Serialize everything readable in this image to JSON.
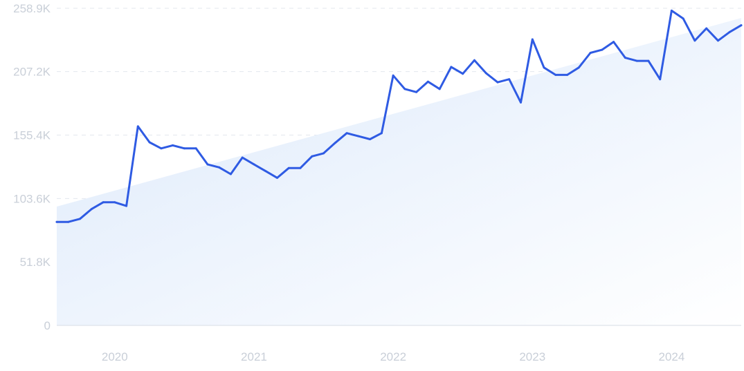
{
  "chart_data": {
    "type": "line",
    "title": "",
    "xlabel": "",
    "ylabel": "",
    "grid": true,
    "legend": "none",
    "ylim": [
      0,
      258900
    ],
    "xlim": [
      "2019-08",
      "2024-07"
    ],
    "y_ticks": [
      {
        "value": 0,
        "label": "0"
      },
      {
        "value": 51800,
        "label": "51.8K"
      },
      {
        "value": 103600,
        "label": "103.6K"
      },
      {
        "value": 155400,
        "label": "155.4K"
      },
      {
        "value": 207200,
        "label": "207.2K"
      },
      {
        "value": 258900,
        "label": "258.9K"
      }
    ],
    "x_ticks": [
      {
        "value": "2020-01",
        "label": "2020"
      },
      {
        "value": "2021-01",
        "label": "2021"
      },
      {
        "value": "2022-01",
        "label": "2022"
      },
      {
        "value": "2023-01",
        "label": "2023"
      },
      {
        "value": "2024-01",
        "label": "2024"
      }
    ],
    "series": [
      {
        "color": "#2f5be3",
        "x": [
          "2019-08",
          "2019-09",
          "2019-10",
          "2019-11",
          "2019-12",
          "2020-01",
          "2020-02",
          "2020-03",
          "2020-04",
          "2020-05",
          "2020-06",
          "2020-07",
          "2020-08",
          "2020-09",
          "2020-10",
          "2020-11",
          "2020-12",
          "2021-01",
          "2021-02",
          "2021-03",
          "2021-04",
          "2021-05",
          "2021-06",
          "2021-07",
          "2021-08",
          "2021-09",
          "2021-10",
          "2021-11",
          "2021-12",
          "2022-01",
          "2022-02",
          "2022-03",
          "2022-04",
          "2022-05",
          "2022-06",
          "2022-07",
          "2022-08",
          "2022-09",
          "2022-10",
          "2022-11",
          "2022-12",
          "2023-01",
          "2023-02",
          "2023-03",
          "2023-04",
          "2023-05",
          "2023-06",
          "2023-07",
          "2023-08",
          "2023-09",
          "2023-10",
          "2023-11",
          "2023-12",
          "2024-01",
          "2024-02",
          "2024-03",
          "2024-04",
          "2024-05",
          "2024-06",
          "2024-07"
        ],
        "values": [
          84500,
          84500,
          87000,
          95000,
          100500,
          100500,
          97500,
          162500,
          149500,
          144500,
          147000,
          144500,
          144500,
          131500,
          129000,
          123500,
          137000,
          131500,
          126000,
          120500,
          128500,
          128500,
          138000,
          140500,
          149000,
          157000,
          154500,
          152000,
          157000,
          204000,
          193000,
          190500,
          199000,
          193000,
          211000,
          205500,
          216500,
          206000,
          198500,
          201000,
          182000,
          233500,
          210500,
          204500,
          204500,
          210500,
          222500,
          225000,
          231500,
          218500,
          216000,
          216000,
          201000,
          257000,
          250500,
          232500,
          242500,
          232500,
          239500,
          245000
        ]
      }
    ],
    "trend": {
      "start": 97000,
      "end": 251000,
      "color_start": "#dce9fb",
      "color_end": "#ffffff"
    }
  }
}
